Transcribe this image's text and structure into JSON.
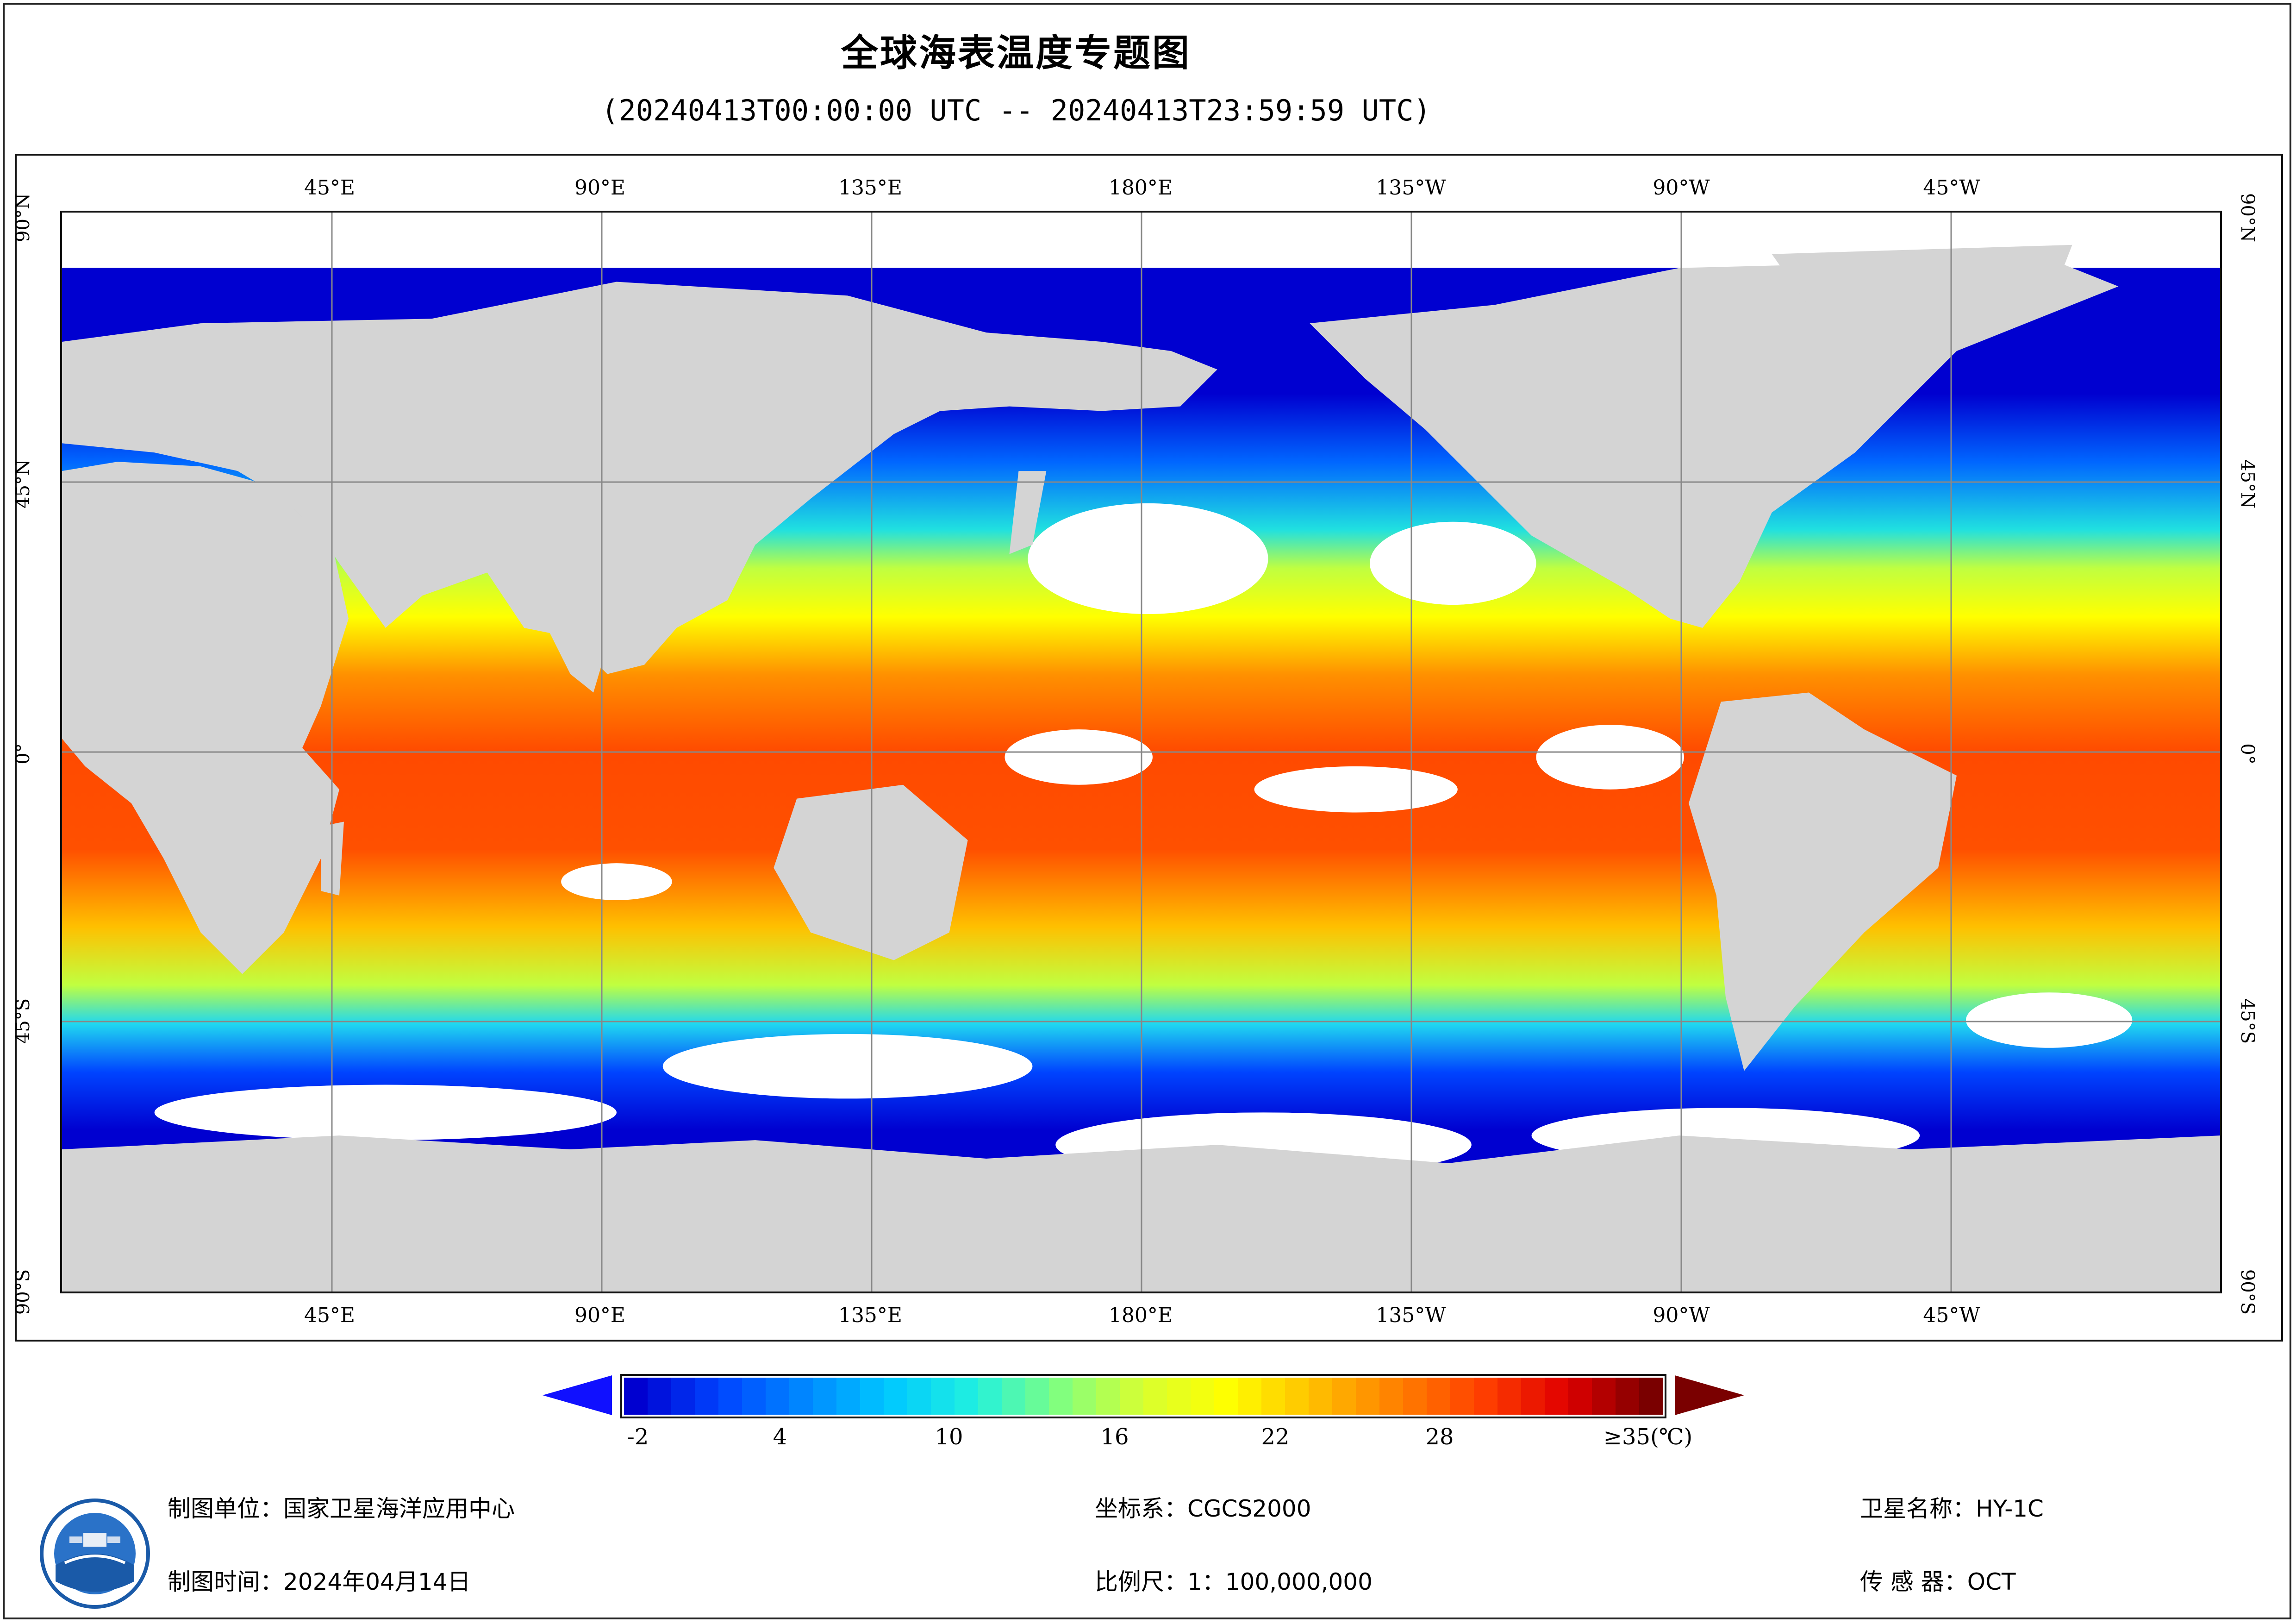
{
  "title": "全球海表温度专题图",
  "subtitle": "(20240413T00:00:00 UTC -- 20240413T23:59:59 UTC)",
  "map": {
    "lon_labels": [
      "45°E",
      "90°E",
      "135°E",
      "180°E",
      "135°W",
      "90°W",
      "45°W"
    ],
    "lat_labels": [
      "90°N",
      "45°N",
      "0°",
      "45°S",
      "90°S"
    ],
    "colors": {
      "land": "#d4d4d4",
      "cloud": "#ffffff",
      "grid": "#888888"
    }
  },
  "colorbar": {
    "ticks": [
      "-2",
      "4",
      "10",
      "16",
      "22",
      "28",
      "≥35(℃)"
    ],
    "min_value": -2,
    "max_value": 35,
    "stops": [
      "#0000d0",
      "#0044ff",
      "#0088ff",
      "#00c8ff",
      "#20f0e0",
      "#80ff80",
      "#d8ff30",
      "#ffff00",
      "#ffc000",
      "#ff8000",
      "#ff4000",
      "#e00000",
      "#7a0000"
    ]
  },
  "footer": {
    "agency_label": "制图单位：国家卫星海洋应用中心",
    "date_label": "制图时间：2024年04月14日",
    "crs_label": "坐标系：CGCS2000",
    "scale_label": "比例尺：1：100,000,000",
    "satellite_label": "卫星名称：HY-1C",
    "sensor_label": "传 感 器：OCT"
  }
}
